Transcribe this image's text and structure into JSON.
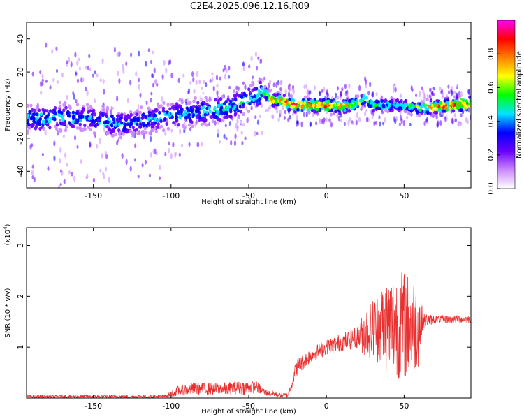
{
  "title": "C2E4.2025.096.12.16.R09",
  "chart_data": [
    {
      "type": "heatmap",
      "xlabel": "Height of straight line (km)",
      "ylabel": "Frequency (Hz)",
      "xlim": [
        -193,
        93
      ],
      "ylim": [
        -50,
        50
      ],
      "x_ticks": [
        -150,
        -100,
        -50,
        0,
        50
      ],
      "y_ticks": [
        -40,
        -20,
        0,
        20,
        40
      ],
      "colorbar": {
        "label": "Normalized spectral amplitude",
        "range": [
          0,
          1
        ],
        "ticks": [
          "0.0",
          "0.2",
          "0.4",
          "0.6",
          "0.8"
        ],
        "tick_values": [
          0,
          0.2,
          0.4,
          0.6,
          0.8
        ],
        "colors": [
          "#ffffff",
          "#cc88ff",
          "#6a00ff",
          "#0000ff",
          "#00e5ff",
          "#00ff00",
          "#ffff00",
          "#ff8000",
          "#ff0000",
          "#ff00ff"
        ]
      },
      "ridge": {
        "x": [
          -193,
          -180,
          -170,
          -160,
          -150,
          -140,
          -130,
          -120,
          -110,
          -100,
          -90,
          -80,
          -70,
          -60,
          -50,
          -45,
          -40,
          -35,
          -30,
          -25,
          -20,
          -10,
          0,
          10,
          20,
          25,
          30,
          40,
          50,
          60,
          70,
          80,
          93
        ],
        "center_hz": [
          -8,
          -8,
          -7,
          -8,
          -8,
          -10,
          -12,
          -10,
          -8,
          -6,
          -5,
          -4,
          -3,
          -1,
          4,
          6,
          8,
          3,
          3,
          1,
          0,
          0,
          0,
          -1,
          1,
          4,
          0,
          0,
          0,
          -2,
          -1,
          0,
          1
        ],
        "peak_amplitude": [
          0.5,
          0.5,
          0.5,
          0.45,
          0.45,
          0.5,
          0.45,
          0.45,
          0.45,
          0.5,
          0.5,
          0.5,
          0.55,
          0.55,
          0.55,
          0.55,
          0.6,
          0.85,
          0.9,
          0.95,
          0.95,
          0.95,
          0.95,
          0.85,
          0.7,
          0.65,
          0.6,
          0.55,
          0.5,
          0.7,
          0.95,
          0.95,
          0.95
        ]
      }
    },
    {
      "type": "line",
      "xlabel": "Height of straight line (km)",
      "ylabel": "SNR (10 * v/v)",
      "y_scale_label": "(x10",
      "y_scale_exp": "4",
      "y_scale_close": ")",
      "xlim": [
        -193,
        93
      ],
      "ylim": [
        0,
        3.35
      ],
      "x_ticks": [
        -150,
        -100,
        -50,
        0,
        50
      ],
      "y_ticks": [
        1,
        2,
        3
      ],
      "color": "#e83030",
      "envelope": {
        "x": [
          -193,
          -150,
          -120,
          -105,
          -100,
          -95,
          -85,
          -75,
          -65,
          -55,
          -45,
          -40,
          -30,
          -25,
          -22,
          -20,
          -18,
          -15,
          -10,
          -5,
          0,
          10,
          20,
          25,
          30,
          40,
          45,
          50,
          55,
          60,
          62,
          70,
          80,
          93
        ],
        "mean": [
          0.03,
          0.03,
          0.03,
          0.03,
          0.08,
          0.15,
          0.18,
          0.18,
          0.18,
          0.2,
          0.22,
          0.12,
          0.06,
          0.05,
          0.3,
          0.55,
          0.65,
          0.7,
          0.85,
          0.92,
          1.0,
          1.1,
          1.2,
          1.3,
          1.38,
          1.45,
          1.45,
          1.42,
          1.4,
          1.5,
          1.52,
          1.55,
          1.55,
          1.55
        ],
        "amp": [
          0.03,
          0.03,
          0.03,
          0.03,
          0.06,
          0.1,
          0.12,
          0.12,
          0.13,
          0.14,
          0.12,
          0.08,
          0.04,
          0.05,
          0.1,
          0.15,
          0.18,
          0.15,
          0.15,
          0.15,
          0.15,
          0.18,
          0.22,
          0.5,
          0.6,
          1.0,
          1.05,
          1.1,
          1.0,
          0.85,
          0.15,
          0.08,
          0.08,
          0.08
        ]
      }
    }
  ]
}
